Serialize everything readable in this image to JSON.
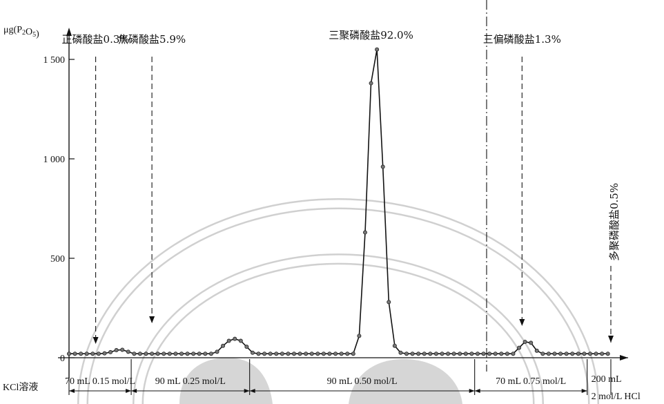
{
  "chart_data": {
    "type": "line",
    "ylabel": "μg(P₂O₅)",
    "ylim": [
      0,
      1600
    ],
    "yticks": [
      {
        "value": 0,
        "label": "0"
      },
      {
        "value": 500,
        "label": "500"
      },
      {
        "value": 1000,
        "label": "1 000"
      },
      {
        "value": 1500,
        "label": "1 500"
      }
    ],
    "series": [
      {
        "x": [
          0,
          2,
          4,
          6,
          8,
          10,
          12,
          14,
          16,
          18,
          20,
          22,
          24,
          26,
          28,
          30,
          32,
          34,
          36,
          38,
          40,
          42,
          44,
          46,
          48,
          50,
          52,
          54,
          56,
          58,
          60,
          62,
          64,
          66,
          68,
          70,
          72,
          74,
          76,
          78,
          80,
          82,
          84,
          86,
          88,
          90,
          92,
          94,
          96,
          98,
          100,
          102,
          104,
          106,
          108,
          110,
          112,
          114,
          116,
          118,
          120,
          122,
          124,
          126,
          128,
          130,
          132,
          134,
          136,
          138,
          140,
          142,
          144,
          146,
          148,
          150,
          152,
          154,
          156,
          158,
          160,
          162,
          164,
          166,
          168,
          170,
          172,
          174,
          176,
          178,
          180,
          182
        ],
        "y": [
          20,
          20,
          20,
          20,
          20,
          20,
          22,
          28,
          38,
          40,
          30,
          20,
          20,
          20,
          20,
          20,
          20,
          20,
          20,
          20,
          20,
          20,
          20,
          20,
          20,
          30,
          60,
          85,
          95,
          85,
          55,
          25,
          20,
          20,
          20,
          20,
          20,
          20,
          20,
          20,
          20,
          20,
          20,
          20,
          20,
          20,
          20,
          20,
          20,
          110,
          630,
          1380,
          1550,
          960,
          280,
          60,
          25,
          20,
          20,
          20,
          20,
          20,
          20,
          20,
          20,
          20,
          20,
          20,
          20,
          20,
          20,
          20,
          20,
          20,
          20,
          20,
          50,
          80,
          75,
          35,
          20,
          20,
          20,
          20,
          20,
          20,
          20,
          20,
          20,
          20,
          20,
          20
        ]
      }
    ],
    "peaks": [
      {
        "label": "正磷酸盐0.3%",
        "x": 9
      },
      {
        "label": "焦磷酸盐5.9%",
        "x": 28
      },
      {
        "label": "三聚磷酸盐92.0%",
        "x": 102
      },
      {
        "label": "三偏磷酸盐1.3%",
        "x": 153
      },
      {
        "label": "多聚磷酸盐0.5%",
        "x": 183
      }
    ],
    "eluent_label": "KCl溶液",
    "eluent_segments": [
      {
        "label": "70 mL 0.15 mol/L",
        "from": 0,
        "to": 21
      },
      {
        "label": "90 mL 0.25 mol/L",
        "from": 21,
        "to": 61
      },
      {
        "label": "90 mL 0.50 mol/L",
        "from": 61,
        "to": 137
      },
      {
        "label": "70 mL 0.75 mol/L",
        "from": 137,
        "to": 175
      },
      {
        "label": "200 mL",
        "label2": "2 mol/L HCl",
        "from": 175,
        "to": 183
      }
    ],
    "xlim": [
      0,
      183
    ]
  }
}
